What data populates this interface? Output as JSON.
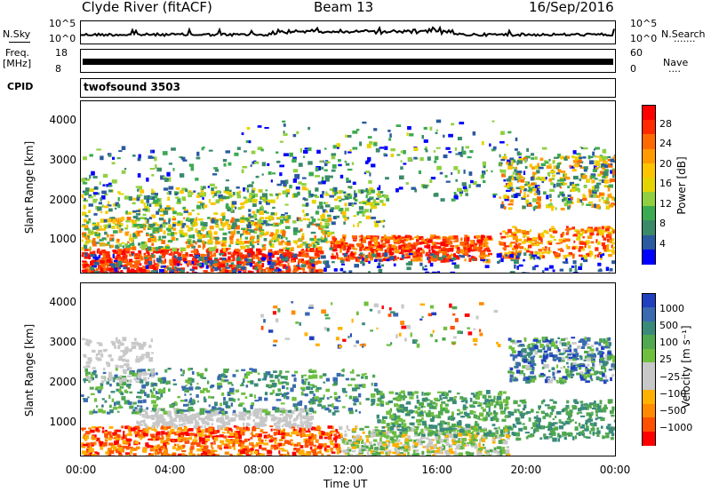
{
  "header": {
    "station": "Clyde River (fitACF)",
    "beam": "Beam 13",
    "date": "16/Sep/2016"
  },
  "strips": {
    "nsky_label": "N.Sky",
    "nsearch_label": "N.Search",
    "nsearch_dots": "·······",
    "n_tick_top": "10^5",
    "n_tick_bottom": "10^0",
    "freq_label_1": "Freq.",
    "freq_label_2": "[MHz]",
    "freq_tick_top": "18",
    "freq_tick_bottom": "8",
    "nave_label": "Nave",
    "nave_dots": "····",
    "nave_tick_top": "60",
    "nave_tick_bottom": "0",
    "cpid_label": "CPID",
    "cpid_value": "twofsound 3503"
  },
  "chart_data": [
    {
      "type": "heatmap",
      "quantity": "power",
      "ylabel": "Slant Range [km]",
      "xlabel": "Time UT",
      "x_ticks": [
        "00:00",
        "04:00",
        "08:00",
        "12:00",
        "16:00",
        "20:00",
        "00:00"
      ],
      "y_ticks": [
        1000,
        2000,
        3000,
        4000
      ],
      "ylim": [
        180,
        4500
      ],
      "colorbar": {
        "label": "Power [dB]",
        "ticks": [
          "28",
          "24",
          "20",
          "16",
          "12",
          "8",
          "4"
        ],
        "colors": [
          "#ff0000",
          "#ff2a00",
          "#ff6a00",
          "#ff9a00",
          "#ffc400",
          "#e6d400",
          "#90d040",
          "#3caa50",
          "#3a8a6a",
          "#2a5aa0",
          "#0000ff"
        ]
      }
    },
    {
      "type": "heatmap",
      "quantity": "velocity",
      "ylabel": "Slant Range [km]",
      "xlabel": "Time UT",
      "x_ticks": [
        "00:00",
        "04:00",
        "08:00",
        "12:00",
        "16:00",
        "20:00",
        "00:00"
      ],
      "y_ticks": [
        1000,
        2000,
        3000,
        4000
      ],
      "ylim": [
        180,
        4500
      ],
      "colorbar": {
        "label": "Velocity [m s⁻¹]",
        "ticks": [
          "1000",
          "500",
          "100",
          "25",
          "−25",
          "−100",
          "−500",
          "−1000"
        ],
        "colors": [
          "#2040c0",
          "#3a6ab0",
          "#3a8a7a",
          "#50a850",
          "#70c040",
          "#c8c8c8",
          "#c8c8c8",
          "#ffb000",
          "#ff8a00",
          "#ff5000",
          "#ff0000"
        ]
      }
    }
  ],
  "xaxis": {
    "label": "Time UT",
    "ticks": [
      "00:00",
      "04:00",
      "08:00",
      "12:00",
      "16:00",
      "20:00",
      "00:00"
    ]
  }
}
